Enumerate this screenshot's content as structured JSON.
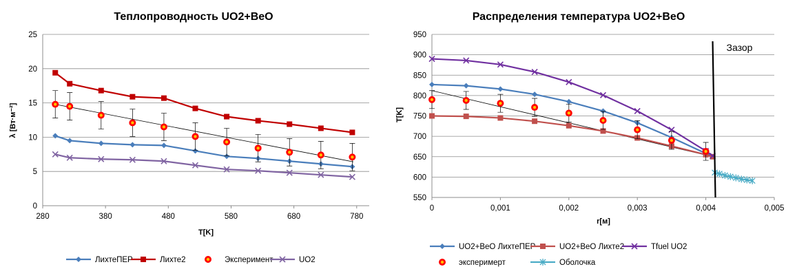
{
  "chart_data": [
    {
      "type": "line",
      "title": "Теплопроводность UO2+BeO",
      "xlabel": "T[K]",
      "ylabel": "λ [Вт·м⁻²]",
      "xlim": [
        280,
        800
      ],
      "ylim": [
        0,
        25
      ],
      "xticks": [
        "280",
        "380",
        "480",
        "580",
        "680",
        "780"
      ],
      "yticks": [
        "0",
        "5",
        "10",
        "15",
        "20",
        "25"
      ],
      "grid": "horizontal",
      "legend": "bottom",
      "trendline": {
        "x": [
          300,
          775
        ],
        "y": [
          14.8,
          6.4
        ],
        "color": "#000000"
      },
      "series": [
        {
          "name": "ЛихтеПЕР",
          "color": "#4a7ebb",
          "marker": "diamond",
          "x": [
            300,
            323,
            373,
            423,
            473,
            523,
            573,
            623,
            673,
            723,
            773
          ],
          "y": [
            10.2,
            9.5,
            9.1,
            8.9,
            8.8,
            8.0,
            7.2,
            6.9,
            6.5,
            6.1,
            5.7
          ]
        },
        {
          "name": "Лихте2",
          "color": "#c00000",
          "marker": "square",
          "x": [
            300,
            323,
            373,
            423,
            473,
            523,
            573,
            623,
            673,
            723,
            773
          ],
          "y": [
            19.4,
            17.8,
            16.8,
            15.9,
            15.7,
            14.2,
            13.0,
            12.4,
            11.9,
            11.3,
            10.7
          ]
        },
        {
          "name": "Эксперимент",
          "color": "#ff0000",
          "marker": "circle",
          "line": false,
          "x": [
            300,
            323,
            373,
            423,
            473,
            523,
            573,
            623,
            673,
            723,
            773
          ],
          "y": [
            14.8,
            14.5,
            13.2,
            12.1,
            11.5,
            10.1,
            9.3,
            8.4,
            7.8,
            7.4,
            7.1
          ],
          "errors": [
            2.0,
            2.0,
            2.0,
            2.0,
            2.0,
            2.0,
            2.0,
            2.0,
            2.0,
            2.0,
            2.0
          ]
        },
        {
          "name": "UO2",
          "color": "#8064a2",
          "marker": "x",
          "x": [
            300,
            323,
            373,
            423,
            473,
            523,
            573,
            623,
            673,
            723,
            773
          ],
          "y": [
            7.5,
            7.0,
            6.8,
            6.7,
            6.5,
            5.9,
            5.3,
            5.1,
            4.8,
            4.5,
            4.2
          ]
        }
      ]
    },
    {
      "type": "line",
      "title": "Распределения температура UO2+BeO",
      "xlabel": "r[м]",
      "ylabel": "T[K]",
      "xlim": [
        0,
        0.005
      ],
      "ylim": [
        550,
        950
      ],
      "xticks": [
        "0",
        "0,001",
        "0,002",
        "0,003",
        "0,004",
        "0,005"
      ],
      "yticks": [
        "550",
        "600",
        "650",
        "700",
        "750",
        "800",
        "850",
        "900",
        "950"
      ],
      "grid": "horizontal",
      "legend": "bottom",
      "annotation": {
        "text": "Зазор",
        "x": 0.00413
      },
      "trendline": {
        "x": [
          0,
          0.0041
        ],
        "y": [
          812,
          650
        ],
        "color": "#000000"
      },
      "series": [
        {
          "name": "UO2+BeO ЛихтеПЕР",
          "color": "#4a7ebb",
          "marker": "diamond",
          "x": [
            0,
            0.0005,
            0.001,
            0.0015,
            0.002,
            0.0025,
            0.003,
            0.0035,
            0.004,
            0.0041
          ],
          "y": [
            827,
            824,
            816,
            803,
            785,
            762,
            733,
            697,
            658,
            650
          ]
        },
        {
          "name": "UO2+BeO Лихте2",
          "color": "#c0504d",
          "marker": "square",
          "x": [
            0,
            0.0005,
            0.001,
            0.0015,
            0.002,
            0.0025,
            0.003,
            0.0035,
            0.004,
            0.0041
          ],
          "y": [
            750,
            749,
            745,
            737,
            726,
            713,
            696,
            676,
            655,
            650
          ]
        },
        {
          "name": "Tfuel UO2",
          "color": "#7030a0",
          "marker": "x",
          "x": [
            0,
            0.0005,
            0.001,
            0.0015,
            0.002,
            0.0025,
            0.003,
            0.0035,
            0.004,
            0.0041
          ],
          "y": [
            890,
            886,
            876,
            858,
            833,
            801,
            762,
            716,
            664,
            652
          ]
        },
        {
          "name": "эксперимерт",
          "color": "#ff0000",
          "marker": "circle",
          "line": false,
          "x": [
            0,
            0.0005,
            0.001,
            0.0015,
            0.002,
            0.0025,
            0.003,
            0.0035,
            0.004
          ],
          "y": [
            790,
            788,
            781,
            771,
            757,
            739,
            716,
            690,
            663
          ],
          "errors": [
            22,
            22,
            22,
            22,
            22,
            22,
            22,
            22,
            22
          ]
        },
        {
          "name": "Оболочка",
          "color": "#4bacc6",
          "marker": "star",
          "x": [
            0.00413,
            0.0042,
            0.00428,
            0.00436,
            0.00444,
            0.00452,
            0.0046,
            0.00468
          ],
          "y": [
            611,
            608,
            604,
            601,
            598,
            595,
            593,
            591
          ]
        }
      ]
    }
  ]
}
